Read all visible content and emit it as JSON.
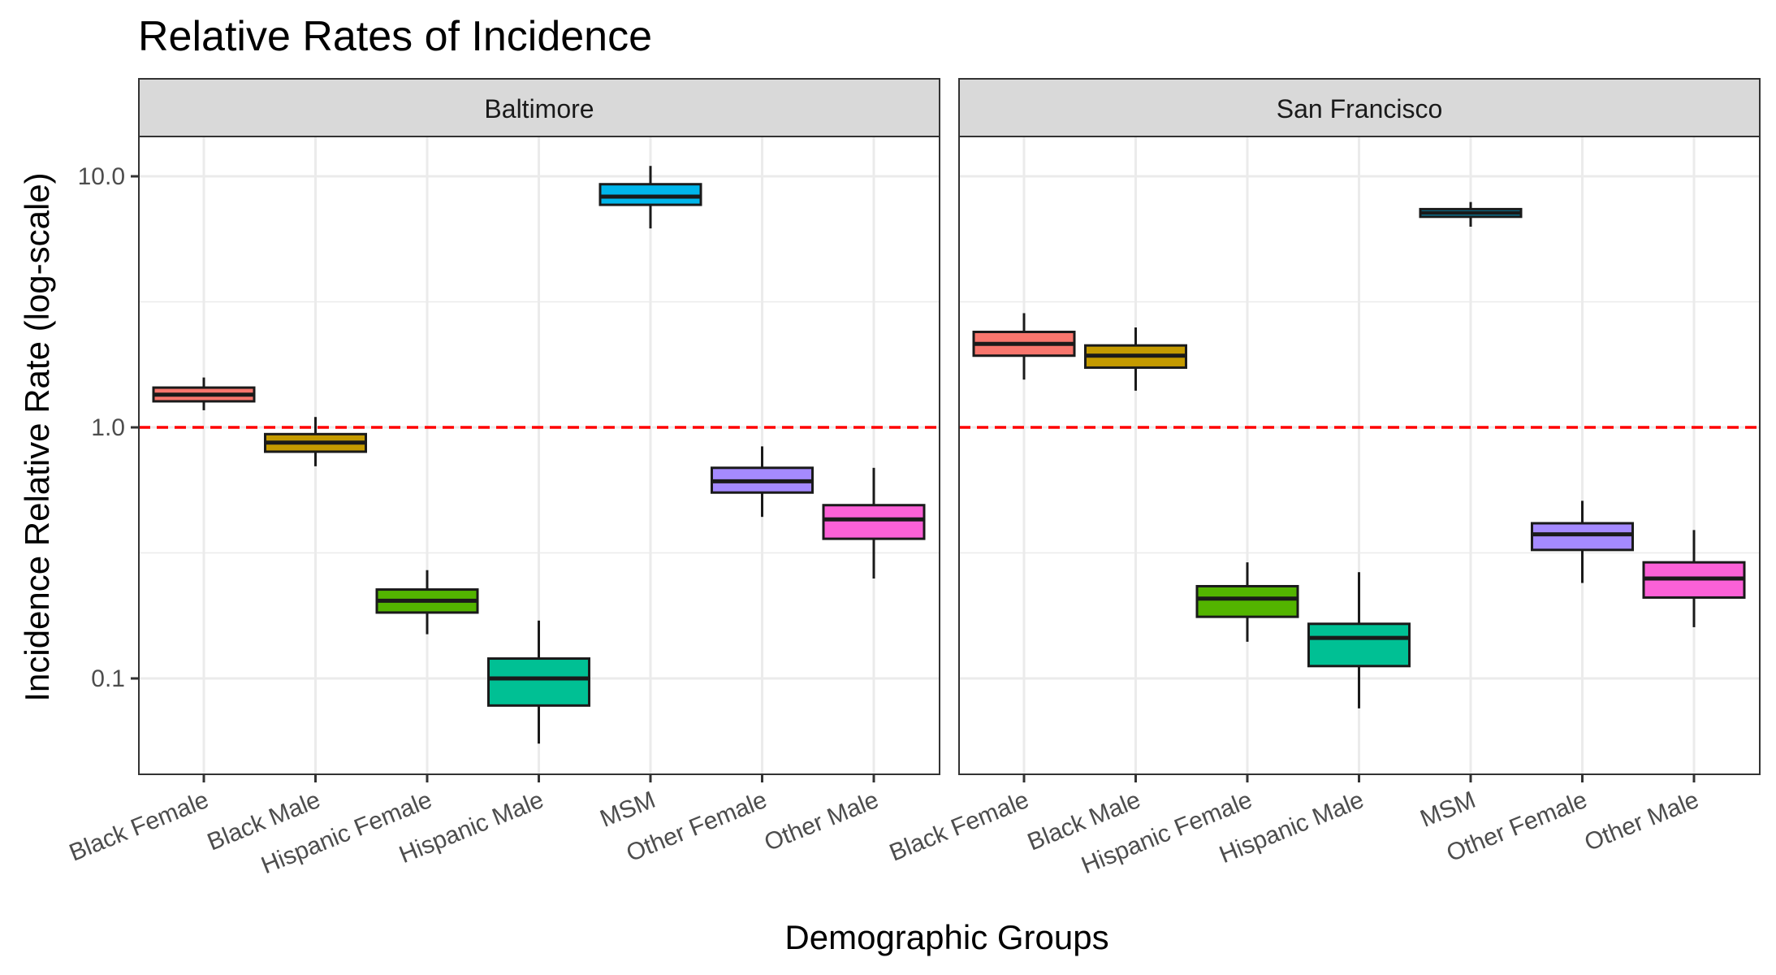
{
  "chart_data": {
    "type": "boxplot",
    "title": "Relative Rates of Incidence",
    "xlabel": "Demographic Groups",
    "ylabel": "Incidence Relative Rate (log-scale)",
    "y_scale": "log10",
    "ylim": [
      0.045,
      20
    ],
    "y_ticks": [
      {
        "value": 0.1,
        "label": "0.1"
      },
      {
        "value": 1.0,
        "label": "1.0"
      },
      {
        "value": 10.0,
        "label": "10.0"
      }
    ],
    "y_minor_grid": [
      0.3162,
      3.162
    ],
    "reference_line": {
      "y": 1.0,
      "color": "#ff0000",
      "style": "dashed"
    },
    "grid": true,
    "legend": "none",
    "categories": [
      "Black Female",
      "Black Male",
      "Hispanic Female",
      "Hispanic Male",
      "MSM",
      "Other Female",
      "Other Male"
    ],
    "colors": [
      "#f8766d",
      "#c49a00",
      "#53b400",
      "#00c094",
      "#00b6eb",
      "#a58aff",
      "#fb61d7"
    ],
    "panels": [
      {
        "name": "Baltimore",
        "boxes": [
          {
            "group": "Black Female",
            "low": 1.17,
            "q1": 1.27,
            "median": 1.35,
            "q3": 1.44,
            "high": 1.58
          },
          {
            "group": "Black Male",
            "low": 0.7,
            "q1": 0.8,
            "median": 0.87,
            "q3": 0.94,
            "high": 1.1
          },
          {
            "group": "Hispanic Female",
            "low": 0.15,
            "q1": 0.183,
            "median": 0.204,
            "q3": 0.226,
            "high": 0.27
          },
          {
            "group": "Hispanic Male",
            "low": 0.055,
            "q1": 0.078,
            "median": 0.1,
            "q3": 0.12,
            "high": 0.17
          },
          {
            "group": "MSM",
            "low": 6.2,
            "q1": 7.7,
            "median": 8.3,
            "q3": 9.3,
            "high": 11.0
          },
          {
            "group": "Other Female",
            "low": 0.44,
            "q1": 0.55,
            "median": 0.61,
            "q3": 0.69,
            "high": 0.84
          },
          {
            "group": "Other Male",
            "low": 0.25,
            "q1": 0.36,
            "median": 0.43,
            "q3": 0.49,
            "high": 0.69
          }
        ]
      },
      {
        "name": "San Francisco",
        "boxes": [
          {
            "group": "Black Female",
            "low": 1.55,
            "q1": 1.93,
            "median": 2.15,
            "q3": 2.4,
            "high": 2.85
          },
          {
            "group": "Black Male",
            "low": 1.4,
            "q1": 1.73,
            "median": 1.93,
            "q3": 2.12,
            "high": 2.5
          },
          {
            "group": "Hispanic Female",
            "low": 0.14,
            "q1": 0.176,
            "median": 0.208,
            "q3": 0.233,
            "high": 0.29
          },
          {
            "group": "Hispanic Male",
            "low": 0.076,
            "q1": 0.112,
            "median": 0.145,
            "q3": 0.165,
            "high": 0.265
          },
          {
            "group": "MSM",
            "low": 6.3,
            "q1": 6.9,
            "median": 7.15,
            "q3": 7.4,
            "high": 7.9
          },
          {
            "group": "Other Female",
            "low": 0.24,
            "q1": 0.325,
            "median": 0.375,
            "q3": 0.415,
            "high": 0.51
          },
          {
            "group": "Other Male",
            "low": 0.16,
            "q1": 0.21,
            "median": 0.25,
            "q3": 0.29,
            "high": 0.39
          }
        ]
      }
    ]
  }
}
